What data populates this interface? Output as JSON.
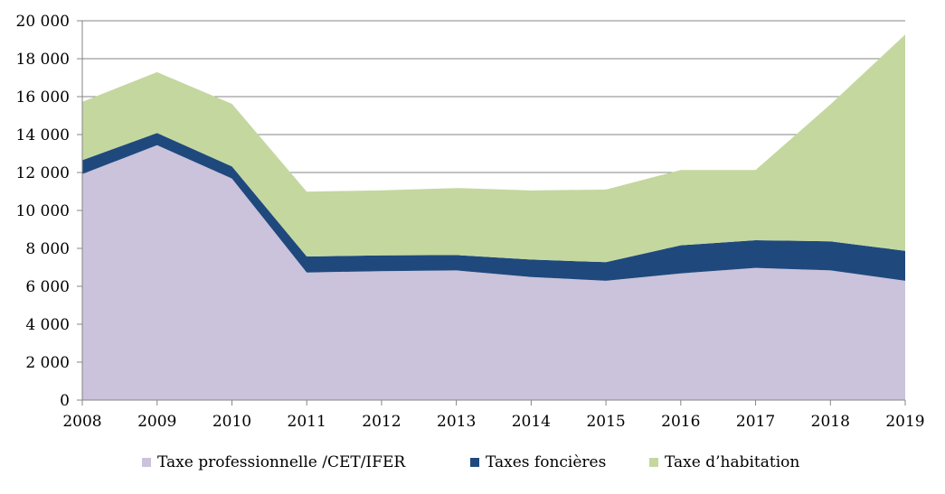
{
  "chart_data": {
    "type": "area",
    "stacked": true,
    "title": "",
    "xlabel": "",
    "ylabel": "",
    "x": [
      "2008",
      "2009",
      "2010",
      "2011",
      "2012",
      "2013",
      "2014",
      "2015",
      "2016",
      "2017",
      "2018",
      "2019"
    ],
    "ylim": [
      0,
      20000
    ],
    "yticks": [
      0,
      2000,
      4000,
      6000,
      8000,
      10000,
      12000,
      14000,
      16000,
      18000,
      20000
    ],
    "ytick_labels": [
      "0",
      "2 000",
      "4 000",
      "6 000",
      "8 000",
      "10 000",
      "12 000",
      "14 000",
      "16 000",
      "18 000",
      "20 000"
    ],
    "grid": true,
    "legend_position": "bottom",
    "series": [
      {
        "name": "Taxe professionnelle /CET/IFER",
        "color": "#CBC2DB",
        "values": [
          11920,
          13440,
          11680,
          6730,
          6800,
          6840,
          6490,
          6290,
          6680,
          6970,
          6840,
          6290
        ]
      },
      {
        "name": "Taxes foncières",
        "color": "#1F497D",
        "values": [
          730,
          640,
          640,
          840,
          830,
          810,
          920,
          980,
          1480,
          1460,
          1530,
          1580
        ]
      },
      {
        "name": "Taxe d’habitation",
        "color": "#C4D79F",
        "values": [
          3080,
          3210,
          3300,
          3420,
          3430,
          3530,
          3640,
          3830,
          3970,
          3700,
          7220,
          11400
        ]
      }
    ]
  }
}
